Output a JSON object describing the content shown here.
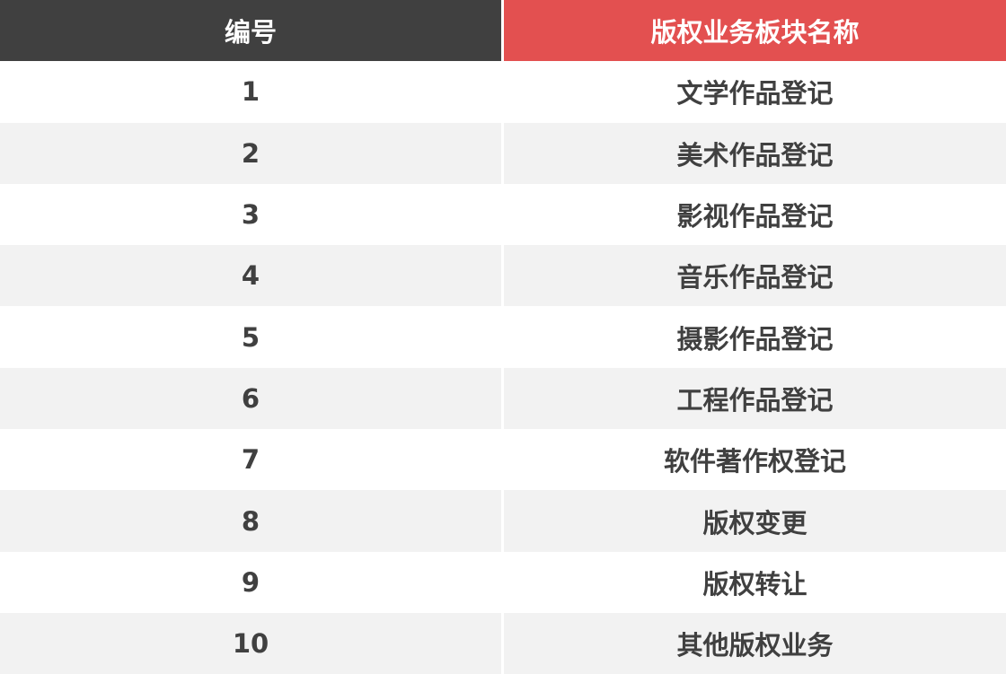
{
  "table": {
    "headers": [
      "编号",
      "版权业务板块名称"
    ],
    "header_colors": [
      "#404040",
      "#e35050"
    ],
    "rows": [
      [
        "1",
        "文学作品登记"
      ],
      [
        "2",
        "美术作品登记"
      ],
      [
        "3",
        "影视作品登记"
      ],
      [
        "4",
        "音乐作品登记"
      ],
      [
        "5",
        "摄影作品登记"
      ],
      [
        "6",
        "工程作品登记"
      ],
      [
        "7",
        "软件著作权登记"
      ],
      [
        "8",
        "版权变更"
      ],
      [
        "9",
        "版权转让"
      ],
      [
        "10",
        "其他版权业务"
      ]
    ]
  }
}
